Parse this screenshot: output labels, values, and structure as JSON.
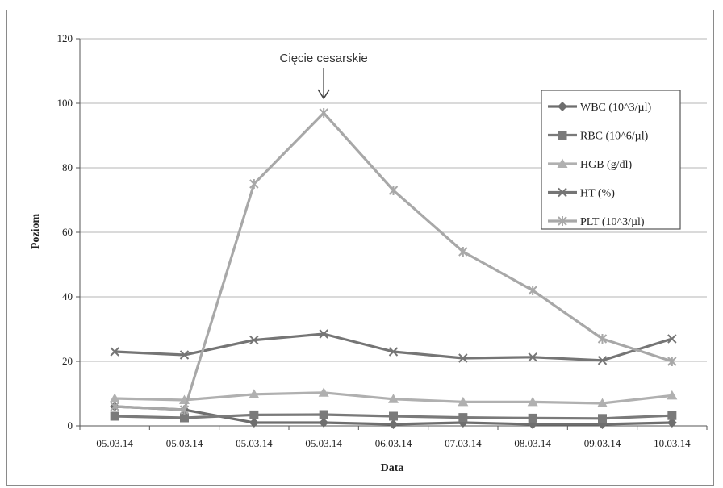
{
  "chart_data": {
    "type": "line",
    "title": "",
    "xlabel": "Data",
    "ylabel": "Poziom",
    "ylim": [
      0,
      120
    ],
    "yticks": [
      0,
      20,
      40,
      60,
      80,
      100,
      120
    ],
    "grid": "horizontal",
    "legend": "right",
    "categories": [
      "05.03.14",
      "05.03.14",
      "05.03.14",
      "05.03.14",
      "06.03.14",
      "07.03.14",
      "08.03.14",
      "09.03.14",
      "10.03.14"
    ],
    "annotation": {
      "text": "Cięcie cesarskie",
      "category_index": 3
    },
    "series": [
      {
        "name": "WBC (10^3/µl)",
        "marker": "diamond",
        "color": "#6e6e6e",
        "values": [
          6,
          5,
          1,
          1,
          0.5,
          1,
          0.5,
          0.5,
          1
        ]
      },
      {
        "name": "RBC (10^6/µl)",
        "marker": "square",
        "color": "#7a7a7a",
        "values": [
          3,
          2.5,
          3.4,
          3.5,
          3,
          2.6,
          2.4,
          2.3,
          3.2
        ]
      },
      {
        "name": "HGB (g/dl)",
        "marker": "triangle",
        "color": "#b0b0b0",
        "values": [
          8.5,
          8,
          9.8,
          10.3,
          8.3,
          7.4,
          7.4,
          7,
          9.4
        ]
      },
      {
        "name": "HT (%)",
        "marker": "x",
        "color": "#757575",
        "values": [
          23,
          22,
          26.6,
          28.5,
          23,
          21,
          21.3,
          20.3,
          27
        ]
      },
      {
        "name": "PLT (10^3/µl)",
        "marker": "star",
        "color": "#a8a8a8",
        "values": [
          6,
          5,
          75,
          97,
          73,
          54,
          42,
          27,
          20
        ]
      }
    ]
  }
}
